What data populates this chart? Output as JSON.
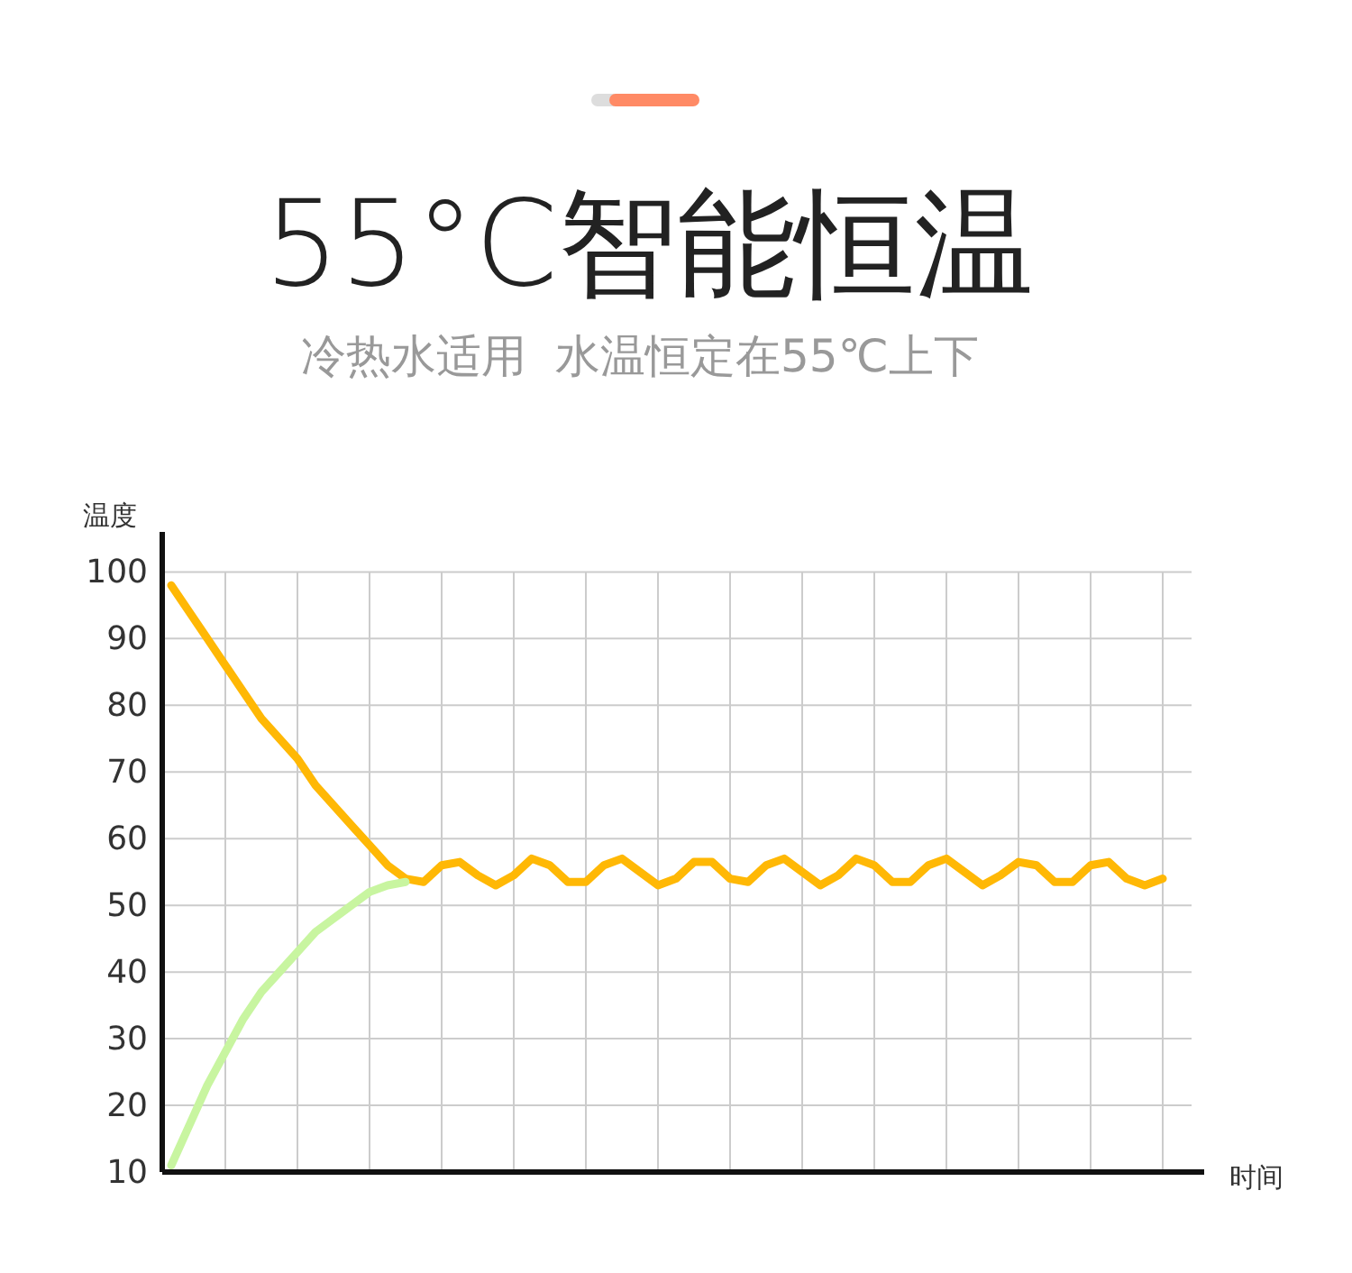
{
  "chart_data": {
    "type": "line",
    "title": "55°C智能恒温",
    "subtitle": "冷热水适用  水温恒定在55℃上下",
    "ylabel": "温度",
    "xlabel": "时间",
    "categories": [
      null,
      null,
      null,
      null,
      null,
      null,
      null,
      null,
      null,
      null,
      null,
      null,
      null,
      null,
      null,
      null,
      null,
      null,
      null,
      null,
      null,
      null,
      null,
      null,
      null,
      null,
      null,
      null,
      null,
      null,
      null,
      null,
      null,
      null,
      null,
      null,
      null,
      null,
      null,
      null,
      null,
      null,
      null,
      null,
      null,
      null,
      null,
      null,
      null,
      null,
      null,
      null,
      null,
      null,
      null,
      null
    ],
    "ylim": [
      10,
      106
    ],
    "yticks": [
      10,
      20,
      30,
      40,
      50,
      60,
      70,
      80,
      90,
      100
    ],
    "grid": true,
    "tick_labels": "y",
    "marker": "none",
    "line_style": "solid",
    "series": [
      {
        "color": "#ffb805",
        "values": [
          98,
          94,
          90,
          86,
          82,
          78,
          75,
          72,
          68,
          65,
          62,
          59,
          56,
          54,
          53.5,
          56,
          56.5,
          54.5,
          53,
          54.5,
          57,
          56,
          53.5,
          53.5,
          56,
          57,
          55,
          53,
          54,
          56.5,
          56.5,
          54,
          53.5,
          56,
          57,
          55,
          53,
          54.5,
          57,
          56,
          53.5,
          53.5,
          56,
          57,
          55,
          53,
          54.5,
          56.5,
          56,
          53.5,
          53.5,
          56,
          56.5,
          54,
          53,
          54
        ]
      },
      {
        "color": "#c8f5a0",
        "values": [
          11,
          17,
          23,
          28,
          33,
          37,
          40,
          43,
          46,
          48,
          50,
          52,
          53,
          53.5,
          null,
          null,
          null,
          null,
          null,
          null,
          null,
          null,
          null,
          null,
          null,
          null,
          null,
          null,
          null,
          null,
          null,
          null,
          null,
          null,
          null,
          null,
          null,
          null,
          null,
          null,
          null,
          null,
          null,
          null,
          null,
          null,
          null,
          null,
          null,
          null,
          null,
          null,
          null,
          null,
          null,
          null
        ]
      }
    ]
  }
}
